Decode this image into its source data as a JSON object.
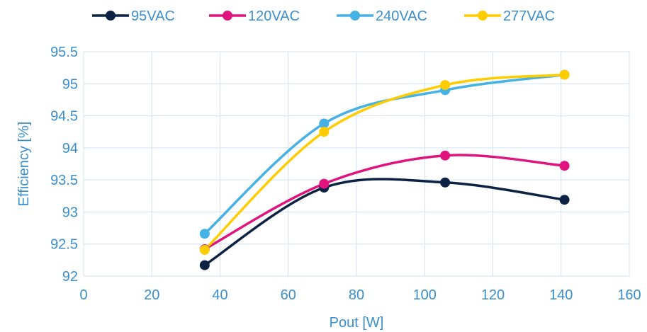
{
  "chart_data": {
    "type": "line",
    "xlabel": "Pout [W]",
    "ylabel": "Efficiency [%]",
    "xlim": [
      0,
      160
    ],
    "ylim": [
      92,
      95.5
    ],
    "x_ticks": [
      "0",
      "20",
      "40",
      "60",
      "80",
      "100",
      "120",
      "140",
      "160"
    ],
    "y_ticks": [
      "92",
      "92.5",
      "93",
      "93.5",
      "94",
      "94.5",
      "95",
      "95.5"
    ],
    "grid": true,
    "legend_position": "top",
    "smooth": true,
    "series": [
      {
        "name": "95VAC",
        "color": "#0b2244",
        "x": [
          35.5,
          70.5,
          106,
          141
        ],
        "values": [
          92.17,
          93.38,
          93.46,
          93.19
        ]
      },
      {
        "name": "120VAC",
        "color": "#e0137f",
        "x": [
          35.5,
          70.5,
          106,
          141
        ],
        "values": [
          92.42,
          93.44,
          93.88,
          93.72
        ]
      },
      {
        "name": "240VAC",
        "color": "#46b1e5",
        "x": [
          35.5,
          70.5,
          106,
          141
        ],
        "values": [
          92.66,
          94.38,
          94.9,
          95.14
        ]
      },
      {
        "name": "277VAC",
        "color": "#ffcc00",
        "x": [
          35.5,
          70.5,
          106,
          141
        ],
        "values": [
          92.41,
          94.25,
          94.98,
          95.14
        ]
      }
    ]
  }
}
